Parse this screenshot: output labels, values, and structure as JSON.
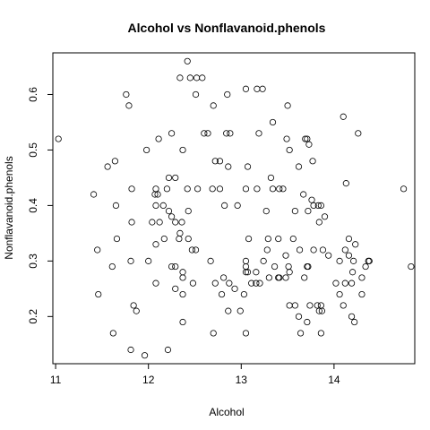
{
  "chart_data": {
    "type": "scatter",
    "title": "Alcohol vs Nonflavanoid.phenols",
    "xlabel": "Alcohol",
    "ylabel": "Nonflavanoid.phenols",
    "xlim": [
      10.97,
      14.87
    ],
    "ylim": [
      0.115,
      0.675
    ],
    "x_ticks": [
      11,
      12,
      13,
      14
    ],
    "y_ticks": [
      0.2,
      0.3,
      0.4,
      0.5,
      0.6
    ],
    "x_tick_labels": [
      "11",
      "12",
      "13",
      "14"
    ],
    "y_tick_labels": [
      "0.2",
      "0.3",
      "0.4",
      "0.5",
      "0.6"
    ],
    "marker": "open-circle",
    "grid": false,
    "legend": "none",
    "points": [
      [
        11.03,
        0.52
      ],
      [
        11.41,
        0.42
      ],
      [
        11.45,
        0.32
      ],
      [
        11.46,
        0.24
      ],
      [
        11.56,
        0.47
      ],
      [
        11.61,
        0.29
      ],
      [
        11.62,
        0.17
      ],
      [
        11.64,
        0.48
      ],
      [
        11.65,
        0.4
      ],
      [
        11.66,
        0.34
      ],
      [
        11.76,
        0.6
      ],
      [
        11.79,
        0.58
      ],
      [
        11.81,
        0.3
      ],
      [
        11.81,
        0.14
      ],
      [
        11.82,
        0.37
      ],
      [
        11.82,
        0.43
      ],
      [
        11.84,
        0.22
      ],
      [
        11.87,
        0.21
      ],
      [
        11.96,
        0.13
      ],
      [
        11.98,
        0.5
      ],
      [
        12.0,
        0.3
      ],
      [
        12.04,
        0.37
      ],
      [
        12.07,
        0.42
      ],
      [
        12.08,
        0.26
      ],
      [
        12.08,
        0.4
      ],
      [
        12.08,
        0.43
      ],
      [
        12.08,
        0.33
      ],
      [
        12.1,
        0.42
      ],
      [
        12.11,
        0.52
      ],
      [
        12.12,
        0.37
      ],
      [
        12.16,
        0.4
      ],
      [
        12.17,
        0.34
      ],
      [
        12.2,
        0.43
      ],
      [
        12.21,
        0.14
      ],
      [
        12.22,
        0.45
      ],
      [
        12.22,
        0.39
      ],
      [
        12.25,
        0.38
      ],
      [
        12.25,
        0.53
      ],
      [
        12.25,
        0.29
      ],
      [
        12.29,
        0.37
      ],
      [
        12.29,
        0.29
      ],
      [
        12.29,
        0.25
      ],
      [
        12.29,
        0.45
      ],
      [
        12.33,
        0.34
      ],
      [
        12.34,
        0.35
      ],
      [
        12.34,
        0.63
      ],
      [
        12.36,
        0.37
      ],
      [
        12.37,
        0.27
      ],
      [
        12.37,
        0.28
      ],
      [
        12.37,
        0.24
      ],
      [
        12.37,
        0.19
      ],
      [
        12.37,
        0.5
      ],
      [
        12.42,
        0.43
      ],
      [
        12.42,
        0.66
      ],
      [
        12.43,
        0.39
      ],
      [
        12.43,
        0.34
      ],
      [
        12.45,
        0.63
      ],
      [
        12.47,
        0.32
      ],
      [
        12.48,
        0.26
      ],
      [
        12.51,
        0.32
      ],
      [
        12.51,
        0.6
      ],
      [
        12.52,
        0.63
      ],
      [
        12.53,
        0.43
      ],
      [
        12.58,
        0.63
      ],
      [
        12.6,
        0.53
      ],
      [
        12.64,
        0.53
      ],
      [
        12.67,
        0.3
      ],
      [
        12.69,
        0.43
      ],
      [
        12.7,
        0.17
      ],
      [
        12.7,
        0.58
      ],
      [
        12.72,
        0.26
      ],
      [
        12.72,
        0.48
      ],
      [
        12.77,
        0.43
      ],
      [
        12.77,
        0.48
      ],
      [
        12.79,
        0.24
      ],
      [
        12.81,
        0.27
      ],
      [
        12.82,
        0.4
      ],
      [
        12.84,
        0.53
      ],
      [
        12.85,
        0.6
      ],
      [
        12.86,
        0.21
      ],
      [
        12.86,
        0.47
      ],
      [
        12.87,
        0.26
      ],
      [
        12.88,
        0.53
      ],
      [
        12.93,
        0.25
      ],
      [
        12.96,
        0.4
      ],
      [
        12.99,
        0.21
      ],
      [
        13.03,
        0.24
      ],
      [
        13.05,
        0.43
      ],
      [
        13.05,
        0.29
      ],
      [
        13.05,
        0.3
      ],
      [
        13.05,
        0.28
      ],
      [
        13.05,
        0.17
      ],
      [
        13.05,
        0.61
      ],
      [
        13.07,
        0.47
      ],
      [
        13.07,
        0.28
      ],
      [
        13.08,
        0.34
      ],
      [
        13.11,
        0.26
      ],
      [
        13.16,
        0.26
      ],
      [
        13.16,
        0.28
      ],
      [
        13.17,
        0.43
      ],
      [
        13.17,
        0.61
      ],
      [
        13.19,
        0.53
      ],
      [
        13.2,
        0.26
      ],
      [
        13.23,
        0.61
      ],
      [
        13.24,
        0.3
      ],
      [
        13.27,
        0.39
      ],
      [
        13.28,
        0.32
      ],
      [
        13.29,
        0.34
      ],
      [
        13.3,
        0.27
      ],
      [
        13.32,
        0.45
      ],
      [
        13.34,
        0.43
      ],
      [
        13.34,
        0.55
      ],
      [
        13.36,
        0.29
      ],
      [
        13.4,
        0.27
      ],
      [
        13.4,
        0.34
      ],
      [
        13.41,
        0.27
      ],
      [
        13.41,
        0.43
      ],
      [
        13.45,
        0.43
      ],
      [
        13.48,
        0.27
      ],
      [
        13.48,
        0.31
      ],
      [
        13.49,
        0.52
      ],
      [
        13.5,
        0.58
      ],
      [
        13.51,
        0.29
      ],
      [
        13.52,
        0.28
      ],
      [
        13.52,
        0.22
      ],
      [
        13.52,
        0.5
      ],
      [
        13.56,
        0.34
      ],
      [
        13.58,
        0.22
      ],
      [
        13.58,
        0.39
      ],
      [
        13.62,
        0.47
      ],
      [
        13.62,
        0.2
      ],
      [
        13.63,
        0.32
      ],
      [
        13.64,
        0.17
      ],
      [
        13.67,
        0.42
      ],
      [
        13.68,
        0.27
      ],
      [
        13.69,
        0.52
      ],
      [
        13.71,
        0.29
      ],
      [
        13.71,
        0.52
      ],
      [
        13.71,
        0.19
      ],
      [
        13.72,
        0.29
      ],
      [
        13.72,
        0.39
      ],
      [
        13.73,
        0.51
      ],
      [
        13.74,
        0.22
      ],
      [
        13.76,
        0.41
      ],
      [
        13.77,
        0.48
      ],
      [
        13.78,
        0.4
      ],
      [
        13.78,
        0.32
      ],
      [
        13.82,
        0.22
      ],
      [
        13.83,
        0.4
      ],
      [
        13.84,
        0.37
      ],
      [
        13.84,
        0.21
      ],
      [
        13.86,
        0.22
      ],
      [
        13.86,
        0.17
      ],
      [
        13.86,
        0.4
      ],
      [
        13.87,
        0.21
      ],
      [
        13.88,
        0.32
      ],
      [
        13.9,
        0.38
      ],
      [
        13.94,
        0.31
      ],
      [
        14.02,
        0.26
      ],
      [
        14.06,
        0.24
      ],
      [
        14.06,
        0.3
      ],
      [
        14.1,
        0.22
      ],
      [
        14.1,
        0.56
      ],
      [
        14.12,
        0.32
      ],
      [
        14.12,
        0.26
      ],
      [
        14.13,
        0.44
      ],
      [
        14.16,
        0.34
      ],
      [
        14.16,
        0.31
      ],
      [
        14.19,
        0.2
      ],
      [
        14.19,
        0.26
      ],
      [
        14.2,
        0.28
      ],
      [
        14.21,
        0.3
      ],
      [
        14.22,
        0.19
      ],
      [
        14.23,
        0.33
      ],
      [
        14.26,
        0.53
      ],
      [
        14.3,
        0.24
      ],
      [
        14.3,
        0.27
      ],
      [
        14.34,
        0.29
      ],
      [
        14.37,
        0.3
      ],
      [
        14.38,
        0.3
      ],
      [
        14.75,
        0.43
      ],
      [
        14.83,
        0.29
      ]
    ]
  }
}
